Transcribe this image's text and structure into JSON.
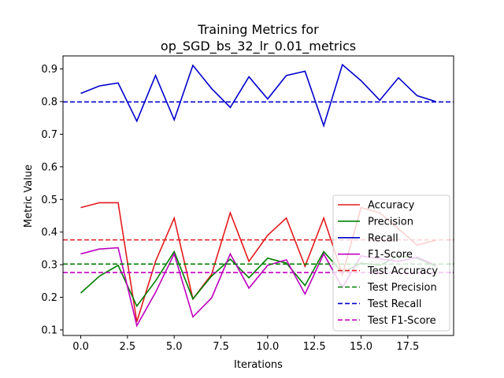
{
  "chart_data": {
    "type": "line",
    "title_lines": [
      "Training Metrics for",
      "op_SGD_bs_32_lr_0.01_metrics"
    ],
    "xlabel": "Iterations",
    "ylabel": "Metric Value",
    "xlim": [
      -0.95,
      19.95
    ],
    "ylim": [
      0.083,
      0.94
    ],
    "xticks": [
      0.0,
      2.5,
      5.0,
      7.5,
      10.0,
      12.5,
      15.0,
      17.5
    ],
    "xtick_labels": [
      "0.0",
      "2.5",
      "5.0",
      "7.5",
      "10.0",
      "12.5",
      "15.0",
      "17.5"
    ],
    "yticks": [
      0.1,
      0.2,
      0.3,
      0.4,
      0.5,
      0.6,
      0.7,
      0.8,
      0.9
    ],
    "ytick_labels": [
      "0.1",
      "0.2",
      "0.3",
      "0.4",
      "0.5",
      "0.6",
      "0.7",
      "0.8",
      "0.9"
    ],
    "grid": false,
    "legend_position": "lower-right",
    "x": [
      0,
      1,
      2,
      3,
      4,
      5,
      6,
      7,
      8,
      9,
      10,
      11,
      12,
      13,
      14,
      15,
      16,
      17,
      18,
      19
    ],
    "series": [
      {
        "name": "Accuracy",
        "color": "#e31a1c",
        "style": "solid",
        "values": [
          0.475,
          0.49,
          0.49,
          0.125,
          0.31,
          0.443,
          0.195,
          0.27,
          0.459,
          0.31,
          0.39,
          0.443,
          0.295,
          0.443,
          0.27,
          0.475,
          0.459,
          0.41,
          0.36,
          0.375
        ]
      },
      {
        "name": "Precision",
        "color": "#008000",
        "style": "solid",
        "values": [
          0.213,
          0.265,
          0.298,
          0.173,
          0.25,
          0.34,
          0.195,
          0.265,
          0.317,
          0.26,
          0.32,
          0.305,
          0.236,
          0.34,
          0.276,
          0.305,
          0.298,
          0.327,
          0.32,
          0.295
        ]
      },
      {
        "name": "Recall",
        "color": "#0000cc",
        "style": "solid",
        "values": [
          0.825,
          0.848,
          0.857,
          0.74,
          0.88,
          0.744,
          0.911,
          0.84,
          0.782,
          0.876,
          0.808,
          0.88,
          0.893,
          0.726,
          0.913,
          0.864,
          0.804,
          0.873,
          0.818,
          0.8
        ]
      },
      {
        "name": "F1-Score",
        "color": "#bf00bf",
        "style": "solid",
        "values": [
          0.333,
          0.348,
          0.352,
          0.113,
          0.215,
          0.333,
          0.14,
          0.198,
          0.333,
          0.228,
          0.298,
          0.315,
          0.21,
          0.333,
          0.23,
          0.327,
          0.318,
          0.31,
          0.323,
          0.298
        ]
      },
      {
        "name": "Test Accuracy",
        "color": "#e31a1c",
        "style": "dashed",
        "constant": 0.376
      },
      {
        "name": "Test Precision",
        "color": "#008000",
        "style": "dashed",
        "constant": 0.302
      },
      {
        "name": "Test Recall",
        "color": "#0000cc",
        "style": "dashed",
        "constant": 0.799
      },
      {
        "name": "Test F1-Score",
        "color": "#bf00bf",
        "style": "dashed",
        "constant": 0.276
      }
    ]
  }
}
